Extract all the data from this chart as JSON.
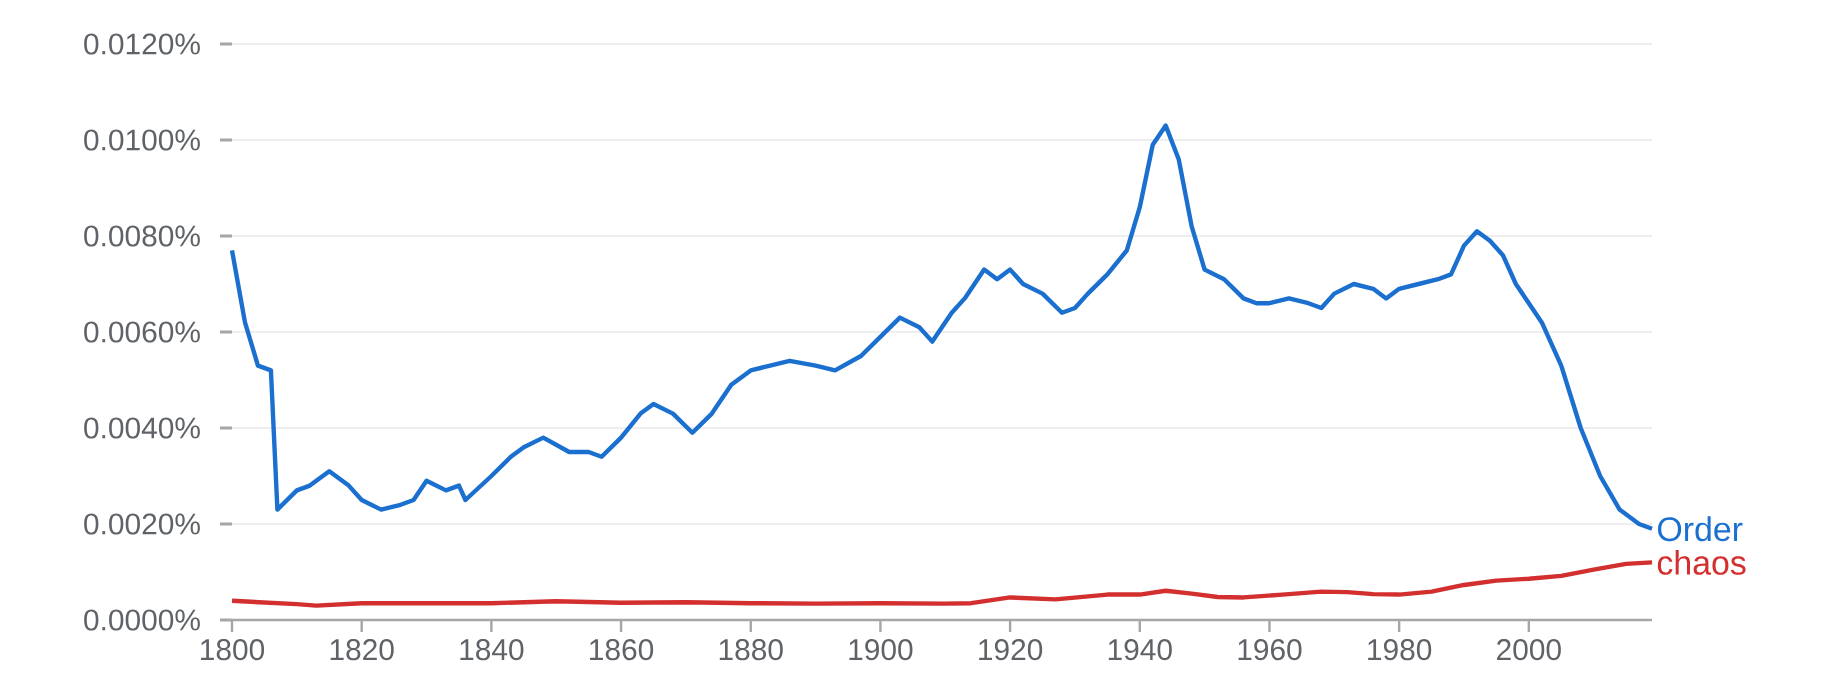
{
  "chart_data": {
    "type": "line",
    "xlim": [
      1800,
      2019
    ],
    "ylim": [
      0,
      0.012
    ],
    "xticks": [
      1800,
      1820,
      1840,
      1860,
      1880,
      1900,
      1920,
      1940,
      1960,
      1980,
      2000
    ],
    "yticks": [
      {
        "value": 0,
        "label": "0.0000%"
      },
      {
        "value": 0.002,
        "label": "0.0020%"
      },
      {
        "value": 0.004,
        "label": "0.0040%"
      },
      {
        "value": 0.006,
        "label": "0.0060%"
      },
      {
        "value": 0.008,
        "label": "0.0080%"
      },
      {
        "value": 0.01,
        "label": "0.0100%"
      },
      {
        "value": 0.012,
        "label": "0.0120%"
      }
    ],
    "grid": "y",
    "marker": "none",
    "line_style": "solid",
    "series": [
      {
        "name": "Order",
        "color": "#1a6fcf",
        "x": [
          1800,
          1802,
          1804,
          1806,
          1807,
          1810,
          1812,
          1815,
          1818,
          1820,
          1823,
          1826,
          1828,
          1830,
          1833,
          1835,
          1836,
          1840,
          1843,
          1845,
          1848,
          1852,
          1855,
          1857,
          1860,
          1863,
          1865,
          1868,
          1871,
          1874,
          1877,
          1880,
          1883,
          1886,
          1890,
          1893,
          1897,
          1900,
          1903,
          1906,
          1908,
          1911,
          1913,
          1916,
          1918,
          1920,
          1922,
          1925,
          1928,
          1930,
          1932,
          1935,
          1938,
          1940,
          1942,
          1944,
          1946,
          1948,
          1950,
          1953,
          1956,
          1958,
          1960,
          1963,
          1966,
          1968,
          1970,
          1973,
          1976,
          1978,
          1980,
          1983,
          1986,
          1988,
          1990,
          1992,
          1994,
          1996,
          1998,
          2000,
          2002,
          2005,
          2008,
          2011,
          2014,
          2017,
          2019
        ],
        "values": [
          0.0077,
          0.0062,
          0.0053,
          0.0052,
          0.0023,
          0.0027,
          0.0028,
          0.0031,
          0.0028,
          0.0025,
          0.0023,
          0.0024,
          0.0025,
          0.0029,
          0.0027,
          0.0028,
          0.0025,
          0.003,
          0.0034,
          0.0036,
          0.0038,
          0.0035,
          0.0035,
          0.0034,
          0.0038,
          0.0043,
          0.0045,
          0.0043,
          0.0039,
          0.0043,
          0.0049,
          0.0052,
          0.0053,
          0.0054,
          0.0053,
          0.0052,
          0.0055,
          0.0059,
          0.0063,
          0.0061,
          0.0058,
          0.0064,
          0.0067,
          0.0073,
          0.0071,
          0.0073,
          0.007,
          0.0068,
          0.0064,
          0.0065,
          0.0068,
          0.0072,
          0.0077,
          0.0086,
          0.0099,
          0.0103,
          0.0096,
          0.0082,
          0.0073,
          0.0071,
          0.0067,
          0.0066,
          0.0066,
          0.0067,
          0.0066,
          0.0065,
          0.0068,
          0.007,
          0.0069,
          0.0067,
          0.0069,
          0.007,
          0.0071,
          0.0072,
          0.0078,
          0.0081,
          0.0079,
          0.0076,
          0.007,
          0.0066,
          0.0062,
          0.0053,
          0.004,
          0.003,
          0.0023,
          0.002,
          0.0019
        ]
      },
      {
        "name": "chaos",
        "color": "#d32f2f",
        "x": [
          1800,
          1810,
          1813,
          1820,
          1830,
          1840,
          1850,
          1860,
          1870,
          1880,
          1890,
          1900,
          1910,
          1914,
          1920,
          1927,
          1935,
          1940,
          1944,
          1948,
          1952,
          1956,
          1962,
          1968,
          1972,
          1976,
          1980,
          1985,
          1990,
          1995,
          2000,
          2005,
          2010,
          2015,
          2019
        ],
        "values": [
          0.0004,
          0.00033,
          0.0003,
          0.00035,
          0.00035,
          0.00035,
          0.00039,
          0.00036,
          0.00037,
          0.00035,
          0.00034,
          0.00035,
          0.00034,
          0.00035,
          0.00047,
          0.00043,
          0.00053,
          0.00053,
          0.00061,
          0.00055,
          0.00048,
          0.00047,
          0.00053,
          0.00059,
          0.00058,
          0.00054,
          0.00053,
          0.00059,
          0.00073,
          0.00082,
          0.00086,
          0.00092,
          0.00105,
          0.00117,
          0.0012
        ]
      }
    ]
  }
}
